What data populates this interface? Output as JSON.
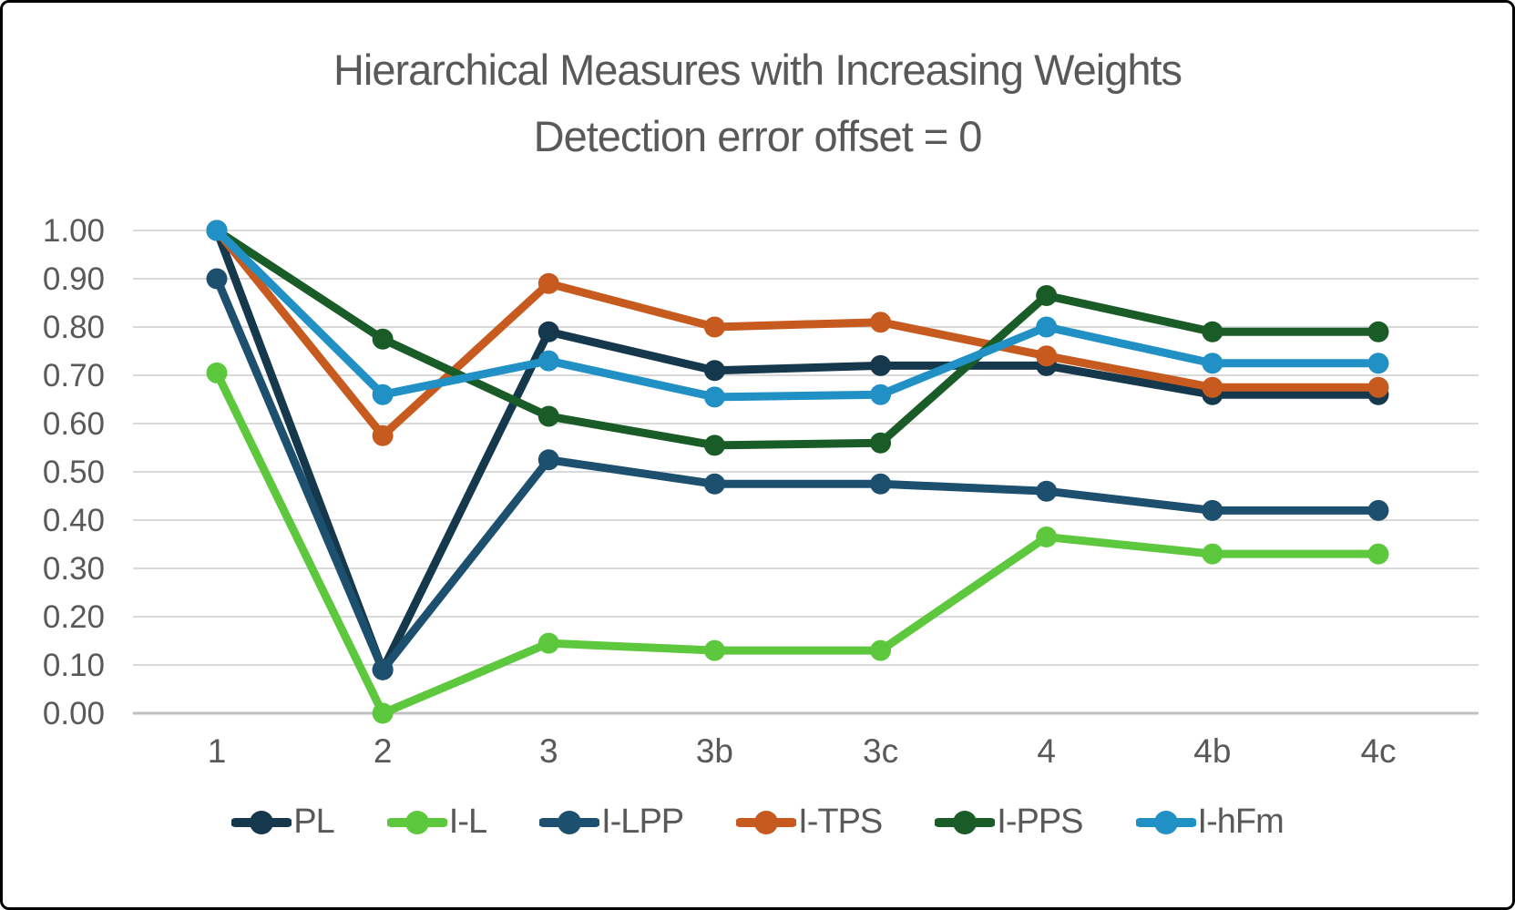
{
  "window": {
    "background_color": "#ffffff",
    "border_color": "#000000"
  },
  "chart_data": {
    "type": "line",
    "title": "Hierarchical Measures  with Increasing Weights",
    "subtitle": "Detection error offset = 0",
    "title_color": "#595959",
    "xlabel": "",
    "ylabel": "",
    "ylim": [
      0.0,
      1.0
    ],
    "y_tick_step": 0.1,
    "y_tick_labels": [
      "0.00",
      "0.10",
      "0.20",
      "0.30",
      "0.40",
      "0.50",
      "0.60",
      "0.70",
      "0.80",
      "0.90",
      "1.00"
    ],
    "categories": [
      "1",
      "2",
      "3",
      "3b",
      "3c",
      "4",
      "4b",
      "4c"
    ],
    "grid": "horizontal",
    "gridline_color": "#d9d9d9",
    "axis_line_color": "#bfbfbf",
    "tick_label_color": "#595959",
    "legend_position": "bottom",
    "series": [
      {
        "name": "PL",
        "color": "#16384c",
        "values": [
          1.0,
          0.09,
          0.79,
          0.71,
          0.72,
          0.72,
          0.66,
          0.66
        ]
      },
      {
        "name": "I-L",
        "color": "#5dc83d",
        "values": [
          0.705,
          0.0,
          0.145,
          0.13,
          0.13,
          0.365,
          0.33,
          0.33
        ]
      },
      {
        "name": "I-LPP",
        "color": "#1d506e",
        "values": [
          0.9,
          0.09,
          0.525,
          0.475,
          0.475,
          0.46,
          0.42,
          0.42
        ]
      },
      {
        "name": "I-TPS",
        "color": "#c65a1f",
        "values": [
          1.0,
          0.575,
          0.89,
          0.8,
          0.81,
          0.74,
          0.675,
          0.675
        ]
      },
      {
        "name": "I-PPS",
        "color": "#1a5c28",
        "values": [
          1.0,
          0.775,
          0.615,
          0.555,
          0.56,
          0.865,
          0.79,
          0.79
        ]
      },
      {
        "name": "I-hFm",
        "color": "#2191c5",
        "values": [
          1.0,
          0.66,
          0.73,
          0.655,
          0.66,
          0.8,
          0.725,
          0.725
        ]
      }
    ]
  }
}
